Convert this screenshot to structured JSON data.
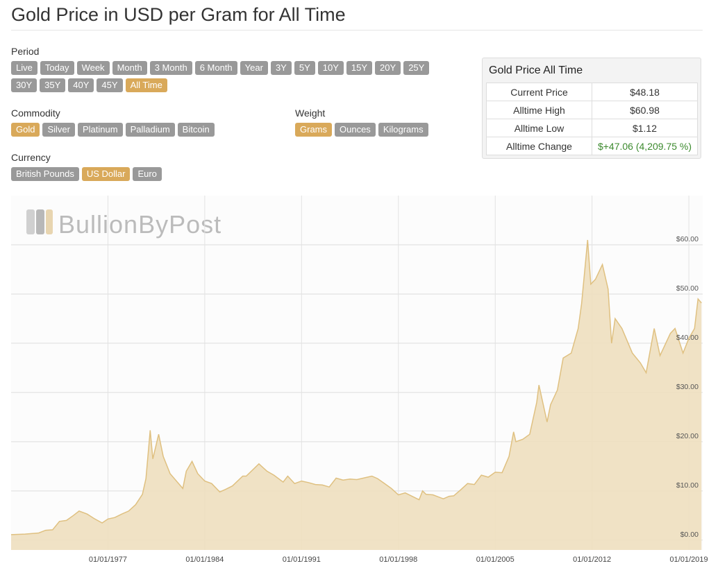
{
  "title": "Gold Price in USD per Gram for All Time",
  "filters": [
    {
      "label": "Period",
      "options": [
        "Live",
        "Today",
        "Week",
        "Month",
        "3 Month",
        "6 Month",
        "Year",
        "3Y",
        "5Y",
        "10Y",
        "15Y",
        "20Y",
        "25Y",
        "30Y",
        "35Y",
        "40Y",
        "45Y",
        "All Time"
      ],
      "selected": 17
    },
    {
      "label": "Commodity",
      "options": [
        "Gold",
        "Silver",
        "Platinum",
        "Palladium",
        "Bitcoin"
      ],
      "selected": 0
    },
    {
      "label": "Weight",
      "options": [
        "Grams",
        "Ounces",
        "Kilograms"
      ],
      "selected": 0
    },
    {
      "label": "Currency",
      "options": [
        "British Pounds",
        "US Dollar",
        "Euro"
      ],
      "selected": 1
    }
  ],
  "summary": {
    "title": "Gold Price All Time",
    "rows": [
      [
        "Current Price",
        "$48.18"
      ],
      [
        "Alltime High",
        "$60.98"
      ],
      [
        "Alltime Low",
        "$1.12"
      ],
      [
        "Alltime Change",
        "$+47.06 (4,209.75 %)"
      ]
    ]
  },
  "watermark": "BullionByPost",
  "chart_data": {
    "type": "area",
    "color": "#eedfbf",
    "line_color": "#dfc080",
    "grid": true,
    "x": [
      "1970-01-01",
      "1971-01-01",
      "1972-01-01",
      "1972-07-01",
      "1973-01-01",
      "1973-07-01",
      "1974-01-01",
      "1974-07-01",
      "1974-12-01",
      "1975-07-01",
      "1976-01-01",
      "1976-08-01",
      "1977-01-01",
      "1977-07-01",
      "1978-01-01",
      "1978-07-01",
      "1979-01-01",
      "1979-07-01",
      "1979-10-01",
      "1980-01-21",
      "1980-04-01",
      "1980-09-01",
      "1981-01-01",
      "1981-07-01",
      "1982-06-01",
      "1982-09-01",
      "1983-02-01",
      "1983-07-01",
      "1984-01-01",
      "1984-07-01",
      "1985-02-01",
      "1985-07-01",
      "1986-01-01",
      "1986-10-01",
      "1987-01-01",
      "1987-12-01",
      "1988-07-01",
      "1989-01-01",
      "1989-09-01",
      "1990-01-01",
      "1990-07-01",
      "1991-01-01",
      "1991-07-01",
      "1992-01-01",
      "1992-07-01",
      "1993-01-01",
      "1993-07-01",
      "1994-01-01",
      "1994-07-01",
      "1995-01-01",
      "1996-02-01",
      "1996-07-01",
      "1997-01-01",
      "1997-07-01",
      "1998-01-01",
      "1998-07-01",
      "1999-07-01",
      "1999-10-01",
      "2000-01-01",
      "2000-07-01",
      "2001-04-01",
      "2001-09-01",
      "2002-01-01",
      "2002-07-01",
      "2003-01-01",
      "2003-07-01",
      "2004-01-01",
      "2004-07-01",
      "2005-01-01",
      "2005-07-01",
      "2006-01-01",
      "2006-05-01",
      "2006-07-01",
      "2007-01-01",
      "2007-07-01",
      "2008-01-01",
      "2008-03-01",
      "2008-10-01",
      "2009-01-01",
      "2009-07-01",
      "2009-12-01",
      "2010-07-01",
      "2011-01-01",
      "2011-04-01",
      "2011-08-01",
      "2011-09-06",
      "2011-12-01",
      "2012-04-01",
      "2012-10-01",
      "2013-03-01",
      "2013-06-01",
      "2013-09-01",
      "2014-03-01",
      "2014-12-01",
      "2015-07-01",
      "2015-12-01",
      "2016-07-01",
      "2016-12-01",
      "2017-09-01",
      "2018-01-01",
      "2018-08-01",
      "2019-01-01",
      "2019-06-01",
      "2019-09-01",
      "2019-12-01"
    ],
    "values": [
      1.12,
      1.22,
      1.45,
      2.0,
      2.1,
      3.8,
      4.0,
      5.0,
      5.9,
      5.3,
      4.4,
      3.5,
      4.3,
      4.6,
      5.3,
      5.9,
      7.2,
      9.3,
      12.5,
      22.3,
      16.5,
      21.5,
      17,
      13.5,
      10.5,
      14,
      16,
      13.5,
      12,
      11.5,
      9.8,
      10.3,
      11,
      13,
      13,
      15.5,
      14,
      13.2,
      11.8,
      13,
      11.5,
      12,
      11.7,
      11.3,
      11.2,
      10.8,
      12.6,
      12.2,
      12.4,
      12.3,
      13,
      12.5,
      11.5,
      10.5,
      9.2,
      9.6,
      8.2,
      10.0,
      9.3,
      9.2,
      8.4,
      8.9,
      9.0,
      10.2,
      11.5,
      11.3,
      13.2,
      12.8,
      13.8,
      13.7,
      17.0,
      22.0,
      20,
      20.5,
      21.5,
      28,
      31.5,
      24,
      27.5,
      30.5,
      37,
      38,
      43,
      48,
      58,
      60.98,
      52,
      53,
      56,
      51,
      40,
      45,
      43,
      38,
      36,
      34,
      43,
      37.5,
      42,
      43,
      38,
      41,
      43,
      49,
      48.18
    ],
    "xlim": [
      "1970-01-01",
      "2020-01-01"
    ],
    "ylim": [
      -2,
      70
    ],
    "xticks": [
      {
        "value": "1977-01-01",
        "label": "01/01/1977"
      },
      {
        "value": "1984-01-01",
        "label": "01/01/1984"
      },
      {
        "value": "1991-01-01",
        "label": "01/01/1991"
      },
      {
        "value": "1998-01-01",
        "label": "01/01/1998"
      },
      {
        "value": "2005-01-01",
        "label": "01/01/2005"
      },
      {
        "value": "2012-01-01",
        "label": "01/01/2012"
      },
      {
        "value": "2019-01-01",
        "label": "01/01/2019"
      }
    ],
    "yticks": [
      {
        "value": 0,
        "label": "$0.00"
      },
      {
        "value": 10,
        "label": "$10.00"
      },
      {
        "value": 20,
        "label": "$20.00"
      },
      {
        "value": 30,
        "label": "$30.00"
      },
      {
        "value": 40,
        "label": "$40.00"
      },
      {
        "value": 50,
        "label": "$50.00"
      },
      {
        "value": 60,
        "label": "$60.00"
      }
    ]
  }
}
